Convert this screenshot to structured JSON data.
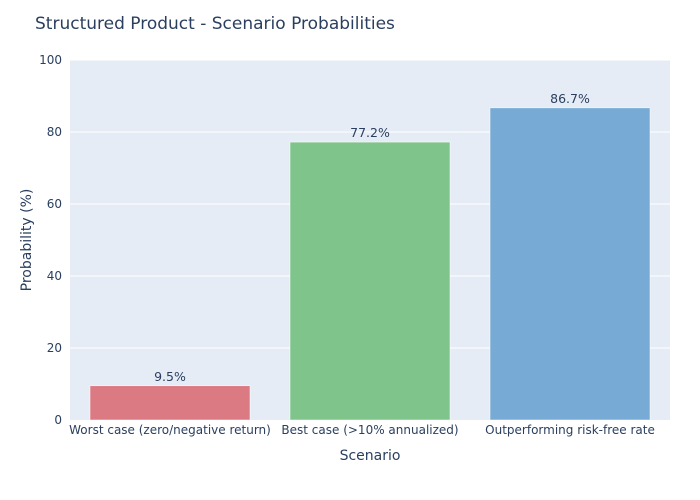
{
  "chart_data": {
    "type": "bar",
    "title": "Structured Product - Scenario Probabilities",
    "xlabel": "Scenario",
    "ylabel": "Probability (%)",
    "categories": [
      "Worst case (zero/negative return)",
      "Best case (>10% annualized)",
      "Outperforming risk-free rate"
    ],
    "values": [
      9.5,
      77.2,
      86.7
    ],
    "value_labels": [
      "9.5%",
      "77.2%",
      "86.7%"
    ],
    "colors": [
      "#dc7a84",
      "#7fc48a",
      "#77aad4"
    ],
    "ylim": [
      0,
      100
    ],
    "yticks": [
      0,
      20,
      40,
      60,
      80,
      100
    ],
    "ytick_labels": [
      "0",
      "20",
      "40",
      "60",
      "80",
      "100"
    ],
    "grid": true,
    "plot_background": "#e5ecf6",
    "text_color": "#2a3f5f"
  }
}
